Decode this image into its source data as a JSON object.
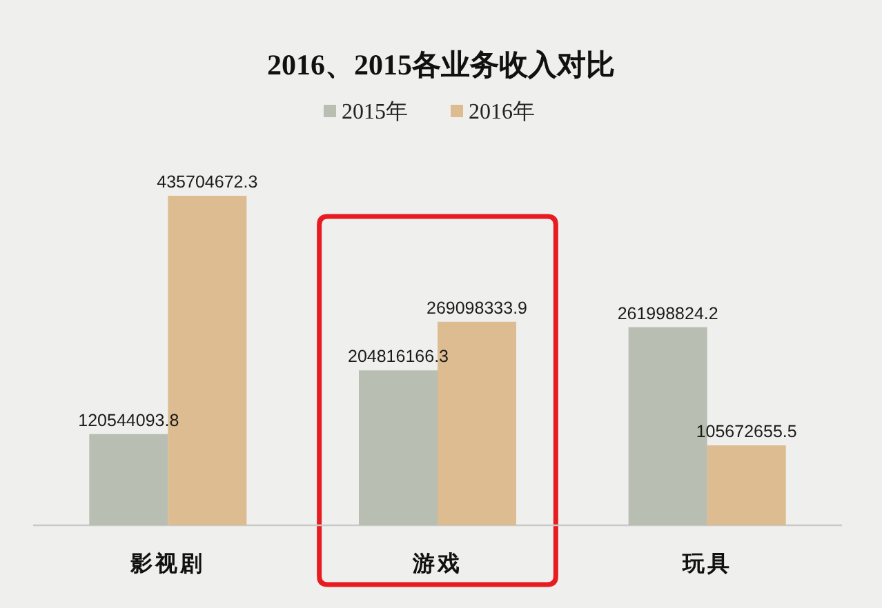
{
  "chart_data": {
    "type": "bar",
    "title": "2016、2015各业务收入对比",
    "categories": [
      "影视剧",
      "游戏",
      "玩具"
    ],
    "series": [
      {
        "name": "2015年",
        "color": "#b8beb1",
        "values": [
          120544093.8,
          204816166.3,
          261998824.2
        ]
      },
      {
        "name": "2016年",
        "color": "#dcbc90",
        "values": [
          435704672.3,
          269098333.9,
          105672655.5
        ]
      }
    ],
    "data_labels": true,
    "legend": "top",
    "tick_labels": "x"
  }
}
